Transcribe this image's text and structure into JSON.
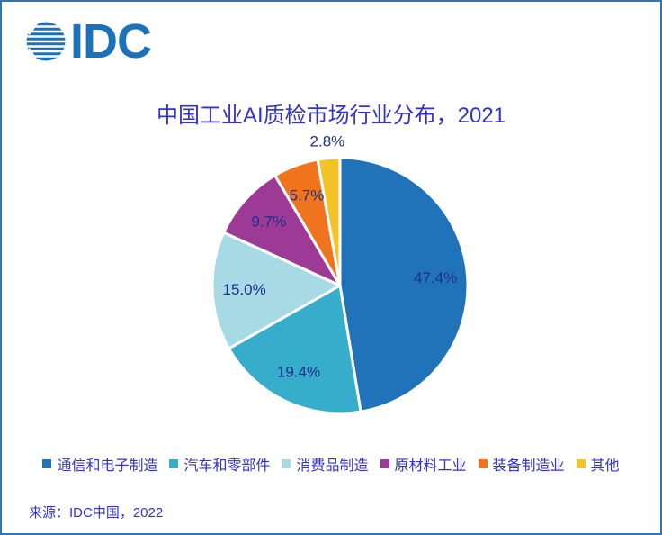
{
  "window": {
    "border_color": "#2E75B6",
    "background": "#FFFFFF"
  },
  "logo": {
    "text": "IDC",
    "color": "#1C72BA"
  },
  "title": {
    "text": "中国工业AI质检市场行业分布，2021",
    "color": "#3333CC"
  },
  "source": {
    "text": "来源：IDC中国，2022",
    "color": "#3333CC"
  },
  "chart_data": {
    "type": "pie",
    "title": "中国工业AI质检市场行业分布，2021",
    "unit": "%",
    "start_angle_deg": 0,
    "direction": "clockwise",
    "legend_position": "bottom",
    "label_color": "#1F2F8C",
    "legend_text_color": "#3333CC",
    "slice_separator_color": "#FFFFFF",
    "categories": [
      "通信和电子制造",
      "汽车和零部件",
      "消费品制造",
      "原材料工业",
      "装备制造业",
      "其他"
    ],
    "values": [
      47.4,
      19.4,
      15.0,
      9.7,
      5.7,
      2.8
    ],
    "slices": [
      {
        "label": "通信和电子制造",
        "value": 47.4,
        "display": "47.4%",
        "color": "#2173B9"
      },
      {
        "label": "汽车和零部件",
        "value": 19.4,
        "display": "19.4%",
        "color": "#36ADCA"
      },
      {
        "label": "消费品制造",
        "value": 15.0,
        "display": "15.0%",
        "color": "#A8DAE5"
      },
      {
        "label": "原材料工业",
        "value": 9.7,
        "display": "9.7%",
        "color": "#9C3A95"
      },
      {
        "label": "装备制造业",
        "value": 5.7,
        "display": "5.7%",
        "color": "#F0741E"
      },
      {
        "label": "其他",
        "value": 2.8,
        "display": "2.8%",
        "color": "#F5C326"
      }
    ]
  }
}
